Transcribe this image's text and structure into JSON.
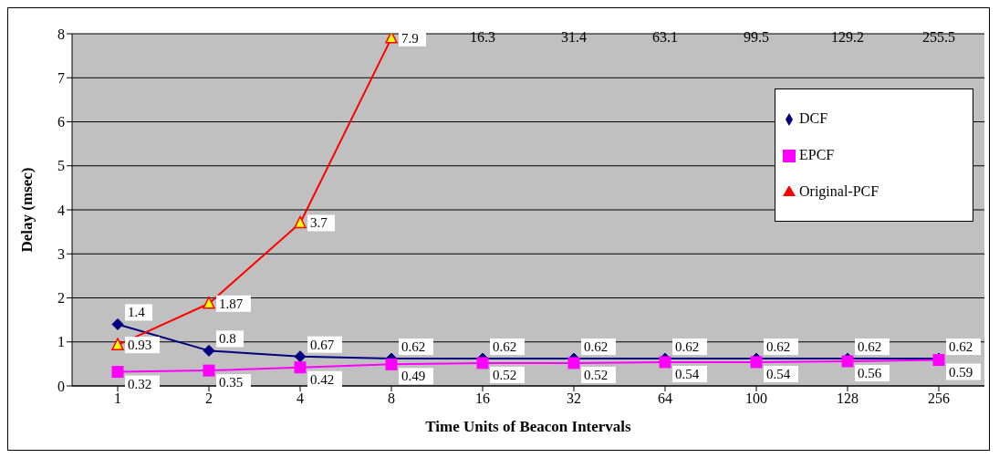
{
  "chart_data": {
    "type": "line",
    "xlabel": "Time Units of Beacon Intervals",
    "ylabel": "Delay (msec)",
    "categories": [
      "1",
      "2",
      "4",
      "8",
      "16",
      "32",
      "64",
      "100",
      "128",
      "256"
    ],
    "series": [
      {
        "name": "DCF",
        "color": "#000080",
        "marker": "diamond",
        "values": [
          1.4,
          0.8,
          0.67,
          0.62,
          0.62,
          0.62,
          0.62,
          0.62,
          0.62,
          0.62
        ]
      },
      {
        "name": "EPCF",
        "color": "#ff00ff",
        "marker": "square",
        "values": [
          0.32,
          0.35,
          0.42,
          0.49,
          0.52,
          0.52,
          0.54,
          0.54,
          0.56,
          0.59
        ]
      },
      {
        "name": "Original-PCF",
        "color": "#ff0000",
        "marker": "triangle",
        "values": [
          0.93,
          1.87,
          3.7,
          7.9,
          null,
          null,
          null,
          null,
          null,
          null
        ]
      }
    ],
    "annotations": [
      "16.3",
      "31.4",
      "63.1",
      "99.5",
      "129.2",
      "255.5"
    ],
    "ylim": [
      0,
      8
    ],
    "yticks": [
      0,
      1,
      2,
      3,
      4,
      5,
      6,
      7,
      8
    ],
    "grid": "y",
    "legend": "top right",
    "data_labels": true,
    "line_style": "solid"
  }
}
